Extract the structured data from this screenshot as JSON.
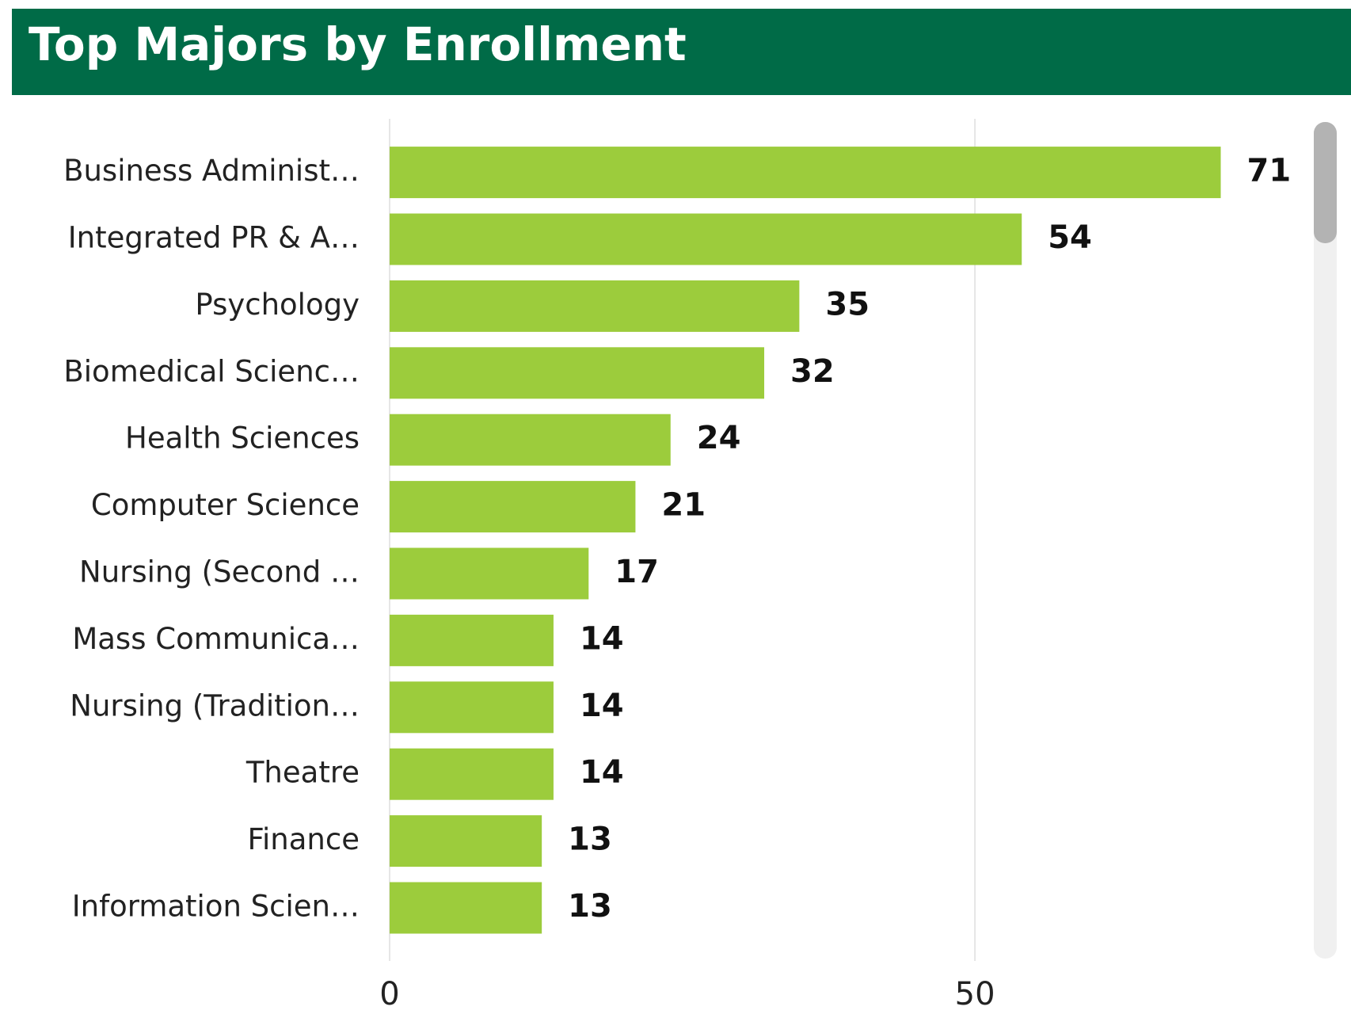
{
  "chart_data": {
    "type": "bar",
    "orientation": "horizontal",
    "title": "Top Majors by Enrollment",
    "categories": [
      "Business Administ…",
      "Integrated PR & A…",
      "Psychology",
      "Biomedical Scienc…",
      "Health Sciences",
      "Computer Science",
      "Nursing (Second …",
      "Mass Communica…",
      "Nursing (Tradition…",
      "Theatre",
      "Finance",
      "Information Scien…"
    ],
    "values": [
      71,
      54,
      35,
      32,
      24,
      21,
      17,
      14,
      14,
      14,
      13,
      13
    ],
    "color": "#9ccc3c",
    "xlim": [
      0,
      78
    ],
    "xticks": [
      0,
      50
    ],
    "grid": true
  }
}
